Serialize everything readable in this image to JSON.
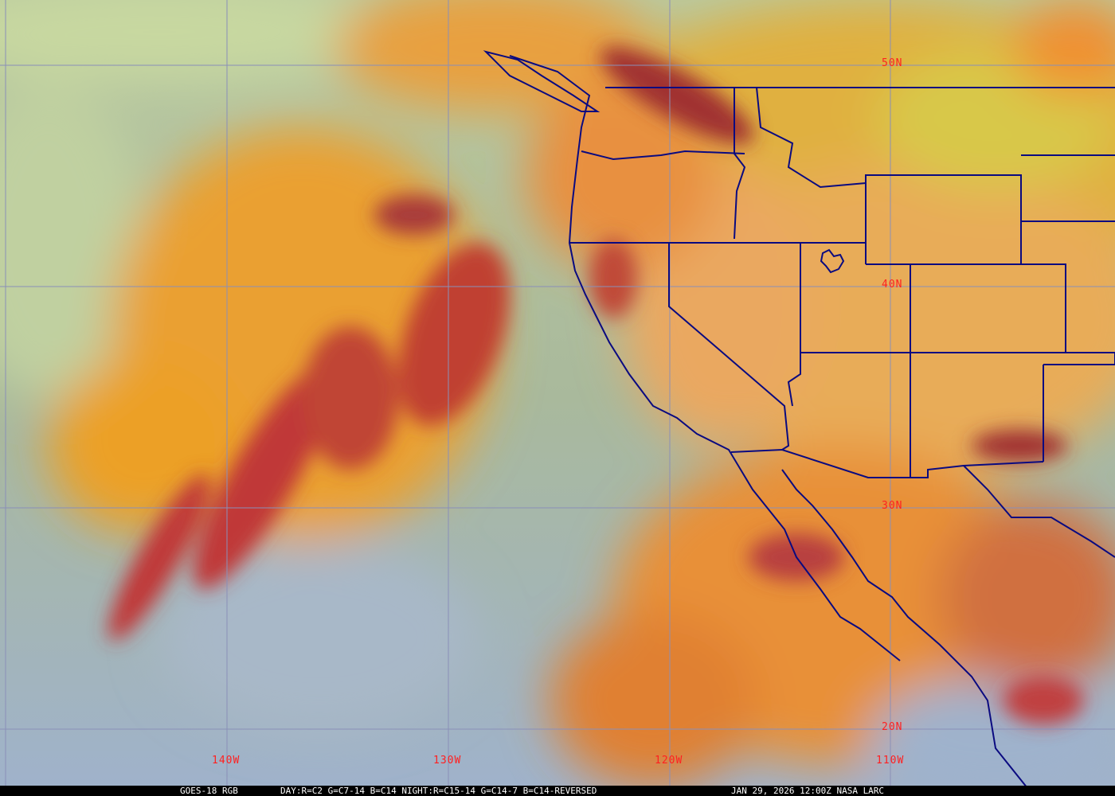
{
  "image": {
    "satellite": "GOES-18",
    "product": "RGB",
    "recipe": "DAY:R=C2 G=C7-14 B=C14 NIGHT:R=C15-14 G=C14-7 B=C14-REVERSED",
    "datetime": "JAN 29, 2026 12:00Z",
    "credit": "NASA LARC"
  },
  "caption": {
    "left": "GOES-18 RGB",
    "recipe": "DAY:R=C2 G=C7-14 B=C14 NIGHT:R=C15-14 G=C14-7 B=C14-REVERSED",
    "time_credit": "JAN 29, 2026 12:00Z NASA LARC"
  },
  "grid": {
    "longitude_labels": [
      "140W",
      "130W",
      "120W",
      "110W"
    ],
    "latitude_labels": [
      "50N",
      "40N",
      "30N",
      "20N"
    ],
    "grid_color": "#8a8fb8",
    "label_color": "#ff2020",
    "boundary_color": "#0a0a80"
  },
  "colors": {
    "ocean_clear": "#a9b99c",
    "ocean_south": "#9fb2cc",
    "high_cloud_orange": "#eaa030",
    "deep_cloud_red": "#b83030",
    "land": "#e8ac58"
  }
}
